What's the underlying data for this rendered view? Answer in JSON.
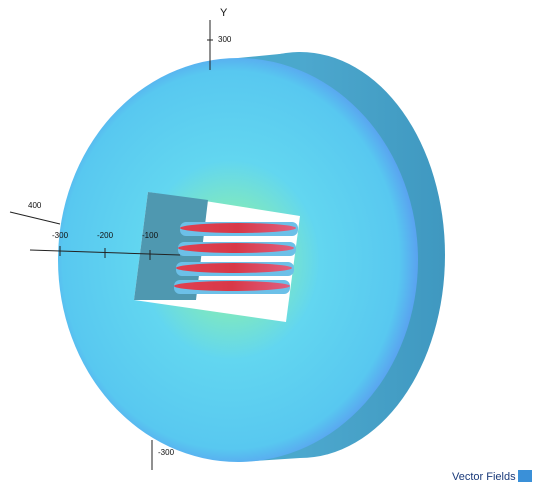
{
  "axes": {
    "y_label": "Y",
    "y_tick_top": "300",
    "z_tick": "400",
    "x_ticks": [
      "-300",
      "-200",
      "-100"
    ],
    "y_tick_bottom": "-300"
  },
  "logo": {
    "text": "Vector Fields"
  }
}
